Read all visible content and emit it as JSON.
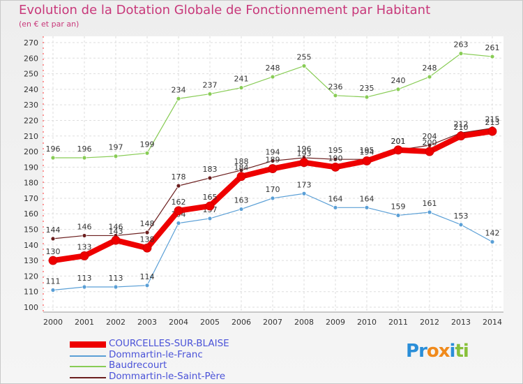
{
  "chart_data": {
    "type": "line",
    "title": "Evolution de la Dotation Globale de Fonctionnement par Habitant",
    "subtitle": "(en € et par an)",
    "xlabel": "",
    "ylabel": "",
    "ylim": [
      100,
      270
    ],
    "y_ticks": [
      100,
      110,
      120,
      130,
      140,
      150,
      160,
      170,
      180,
      190,
      200,
      210,
      220,
      230,
      240,
      250,
      260,
      270
    ],
    "x": [
      "2000",
      "2001",
      "2002",
      "2003",
      "2004",
      "2005",
      "2006",
      "2007",
      "2008",
      "2009",
      "2010",
      "2011",
      "2012",
      "2013",
      "2014"
    ],
    "grid": true,
    "legend_position": "bottom-left",
    "series": [
      {
        "name": "COURCELLES-SUR-BLAISE",
        "color": "#ee0000",
        "values": [
          130,
          133,
          143,
          138,
          162,
          165,
          184,
          189,
          193,
          190,
          194,
          201,
          200,
          210,
          213
        ]
      },
      {
        "name": "Dommartin-le-Franc",
        "color": "#5a9fd6",
        "values": [
          111,
          113,
          113,
          114,
          154,
          157,
          163,
          170,
          173,
          164,
          164,
          159,
          161,
          153,
          142
        ]
      },
      {
        "name": "Baudrecourt",
        "color": "#88cc55",
        "values": [
          196,
          196,
          197,
          199,
          234,
          237,
          241,
          248,
          255,
          236,
          235,
          240,
          248,
          263,
          261
        ]
      },
      {
        "name": "Dommartin-le-Saint-Père",
        "color": "#6b1e1e",
        "values": [
          144,
          146,
          146,
          148,
          178,
          183,
          188,
          194,
          196,
          195,
          195,
          201,
          204,
          212,
          215
        ]
      }
    ]
  },
  "logo": {
    "text": "Proxiti",
    "letters": [
      "P",
      "r",
      "o",
      "x",
      "i",
      "t",
      "i"
    ],
    "colors": [
      "#2a8ed8",
      "#2a8ed8",
      "#f08a1c",
      "#f08a1c",
      "#2a8ed8",
      "#88c03a",
      "#88c03a"
    ]
  }
}
